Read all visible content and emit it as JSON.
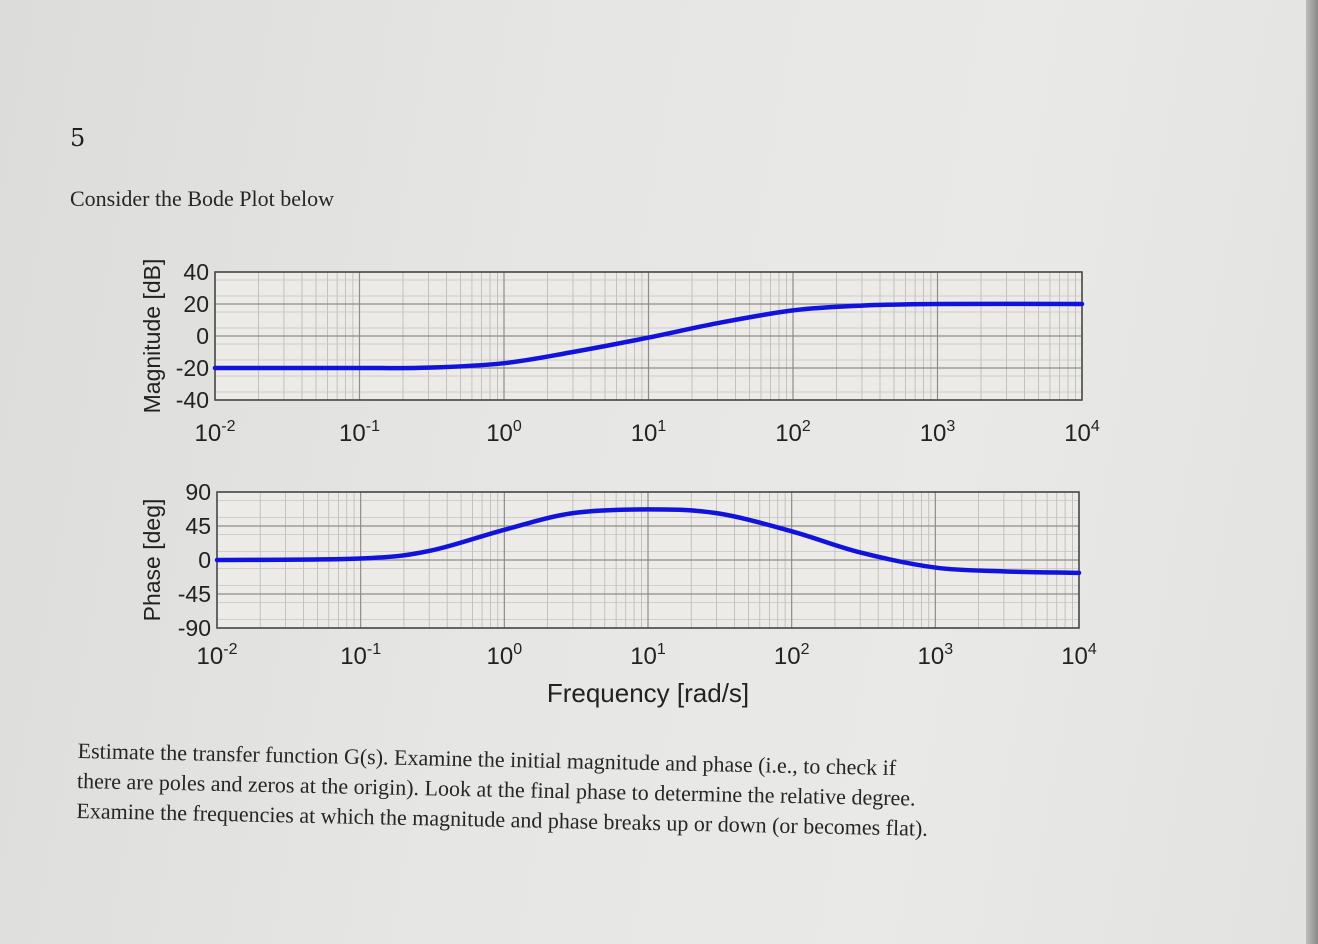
{
  "question": {
    "number": "5",
    "intro": "Consider the Bode Plot below",
    "body_lines": [
      "Estimate the transfer function G(s). Examine the initial magnitude and phase (i.e., to check if",
      "there are poles and zeros at the origin). Look at the final phase to determine the relative degree.",
      "Examine the frequencies at which the magnitude and phase breaks up or down (or becomes flat)."
    ]
  },
  "chart_data": [
    {
      "type": "line",
      "panel": "magnitude",
      "ylabel": "Magnitude [dB]",
      "xlabel": "",
      "x_scale": "log",
      "xlim": [
        0.01,
        10000
      ],
      "ylim": [
        -40,
        40
      ],
      "yticks": [
        "40",
        "20",
        "0",
        "-20",
        "-40"
      ],
      "xtick_labels": [
        [
          "10",
          "-2"
        ],
        [
          "10",
          "-1"
        ],
        [
          "10",
          "0"
        ],
        [
          "10",
          "1"
        ],
        [
          "10",
          "2"
        ],
        [
          "10",
          "3"
        ],
        [
          "10",
          "4"
        ]
      ],
      "grid": true,
      "series": [
        {
          "color": "#1212dd",
          "x": [
            0.01,
            0.1,
            0.3,
            1,
            3,
            10,
            30,
            100,
            300,
            1000,
            10000
          ],
          "y": [
            -20,
            -20,
            -19.8,
            -17,
            -10,
            -1,
            8,
            16,
            19,
            20,
            20
          ]
        }
      ]
    },
    {
      "type": "line",
      "panel": "phase",
      "ylabel": "Phase [deg]",
      "xlabel": "Frequency [rad/s]",
      "x_scale": "log",
      "xlim": [
        0.01,
        10000
      ],
      "ylim": [
        -90,
        90
      ],
      "yticks": [
        "90",
        "45",
        "0",
        "-45",
        "-90"
      ],
      "xtick_labels": [
        [
          "10",
          "-2"
        ],
        [
          "10",
          "-1"
        ],
        [
          "10",
          "0"
        ],
        [
          "10",
          "1"
        ],
        [
          "10",
          "2"
        ],
        [
          "10",
          "3"
        ],
        [
          "10",
          "4"
        ]
      ],
      "grid": true,
      "series": [
        {
          "color": "#1212dd",
          "x": [
            0.01,
            0.1,
            0.3,
            1,
            3,
            10,
            30,
            100,
            300,
            1000,
            3000,
            10000
          ],
          "y": [
            0,
            2,
            12,
            40,
            62,
            67,
            62,
            38,
            10,
            -10,
            -15,
            -17
          ]
        }
      ]
    }
  ]
}
